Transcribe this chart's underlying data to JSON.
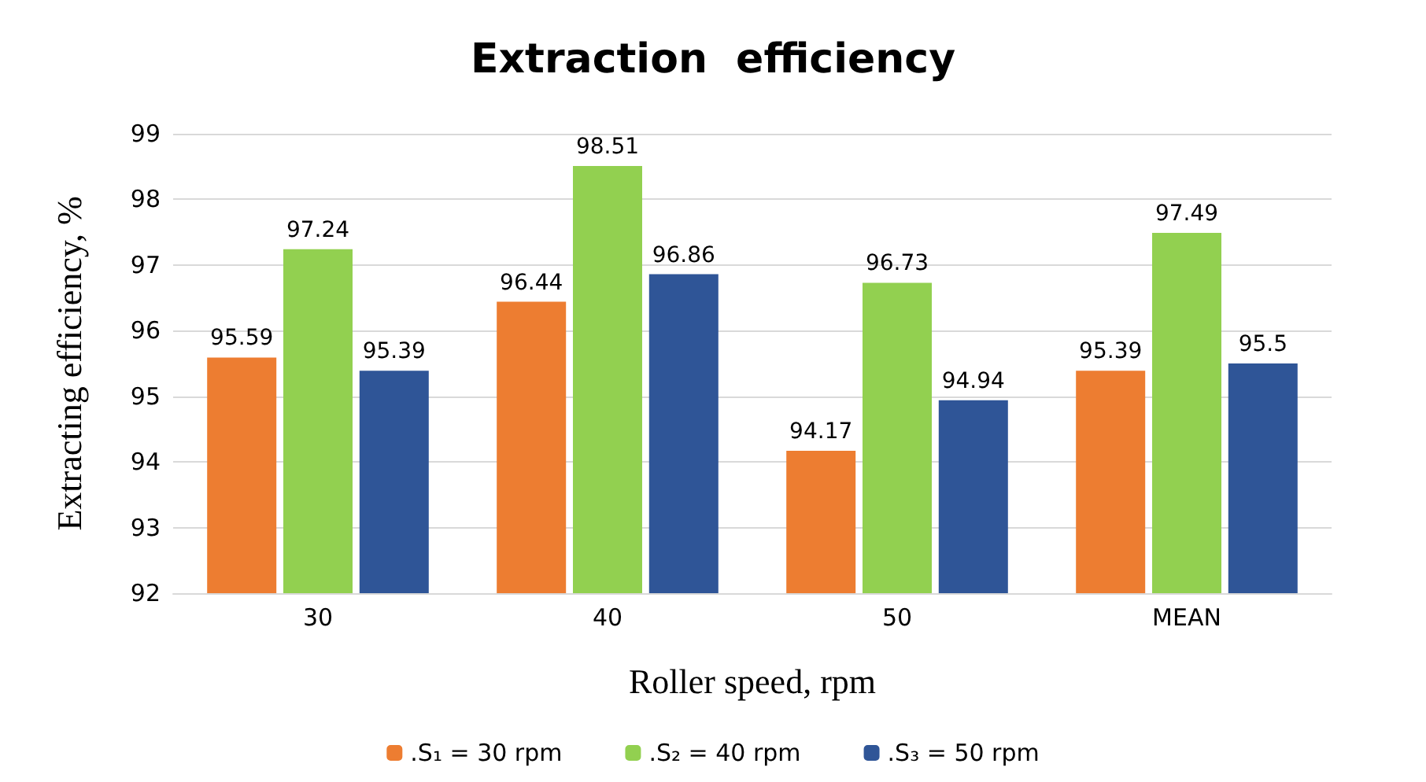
{
  "chart_data": {
    "type": "bar",
    "title": "Extraction  efficiency",
    "xlabel": "Roller speed, rpm",
    "ylabel": "Extracting efficiency, %",
    "categories": [
      "30",
      "40",
      "50",
      "MEAN"
    ],
    "series": [
      {
        "name": ".S₁ = 30 rpm",
        "color": "#ed7d31",
        "values": [
          95.59,
          96.44,
          94.17,
          95.39
        ]
      },
      {
        "name": ".S₂ = 40 rpm",
        "color": "#92d050",
        "values": [
          97.24,
          98.51,
          96.73,
          97.49
        ]
      },
      {
        "name": ".S₃ = 50 rpm",
        "color": "#2f5597",
        "values": [
          95.39,
          96.86,
          94.94,
          95.5
        ]
      }
    ],
    "ylim": [
      92,
      99
    ],
    "yticks": [
      92,
      93,
      94,
      95,
      96,
      97,
      98,
      99
    ],
    "grid": "y",
    "legend": "bottom",
    "data_labels": true
  }
}
